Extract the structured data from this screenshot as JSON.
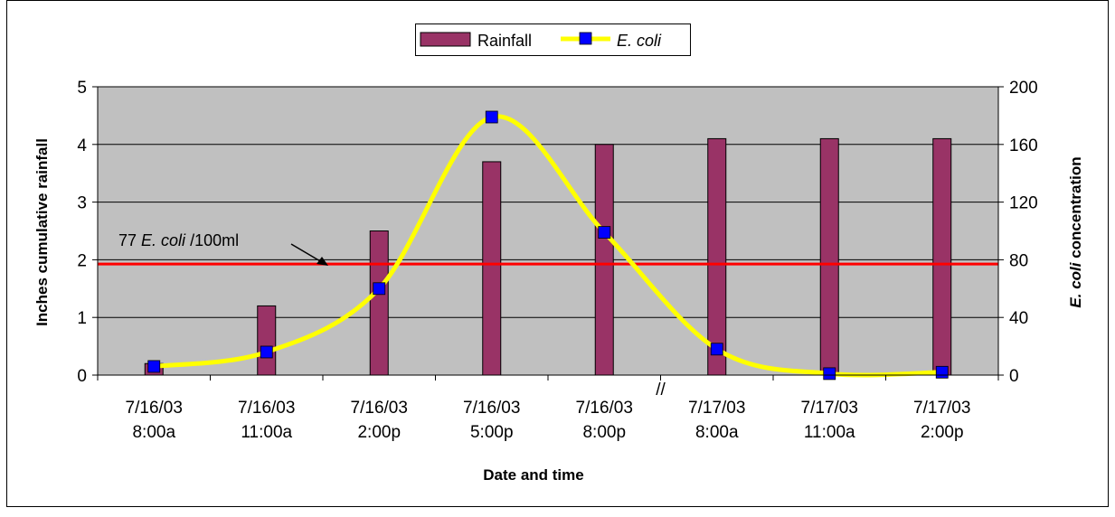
{
  "chart_data": {
    "type": "bar",
    "categories": [
      [
        "7/16/03",
        "8:00a"
      ],
      [
        "7/16/03",
        "11:00a"
      ],
      [
        "7/16/03",
        "2:00p"
      ],
      [
        "7/16/03",
        "5:00p"
      ],
      [
        "7/16/03",
        "8:00p"
      ],
      [
        "7/17/03",
        "8:00a"
      ],
      [
        "7/17/03",
        "11:00a"
      ],
      [
        "7/17/03",
        "2:00p"
      ]
    ],
    "series": [
      {
        "name": "Rainfall",
        "type": "bar",
        "axis": "left",
        "color": "#993366",
        "values": [
          0.2,
          1.2,
          2.5,
          3.7,
          4.0,
          4.1,
          4.1,
          4.1
        ]
      },
      {
        "name": "E. coli",
        "type": "line",
        "axis": "right",
        "color": "#ffff00",
        "marker_color": "#0000ff",
        "values": [
          6,
          16,
          60,
          179,
          99,
          18,
          1,
          2
        ]
      }
    ],
    "xlabel": "Date and time",
    "ylabel_left": "Inches cumulative rainfall",
    "ylabel_right_italic": "E. coli",
    "ylabel_right_rest": " concentration",
    "ylim_left": [
      0,
      5
    ],
    "yticks_left": [
      "0",
      "1",
      "2",
      "3",
      "4",
      "5"
    ],
    "ylim_right": [
      0,
      200
    ],
    "yticks_right": [
      "0",
      "40",
      "80",
      "120",
      "160",
      "200"
    ],
    "reference_line": {
      "value": 77,
      "axis": "right",
      "color": "#ff0000"
    },
    "annotation": {
      "prefix": "77 ",
      "italic": "E. coli",
      "suffix": " /100ml"
    },
    "axis_break_after_index": 4,
    "axis_break_symbol": "//",
    "grid": true,
    "plot_background": "#c0c0c0",
    "legend_position": "top-center"
  }
}
